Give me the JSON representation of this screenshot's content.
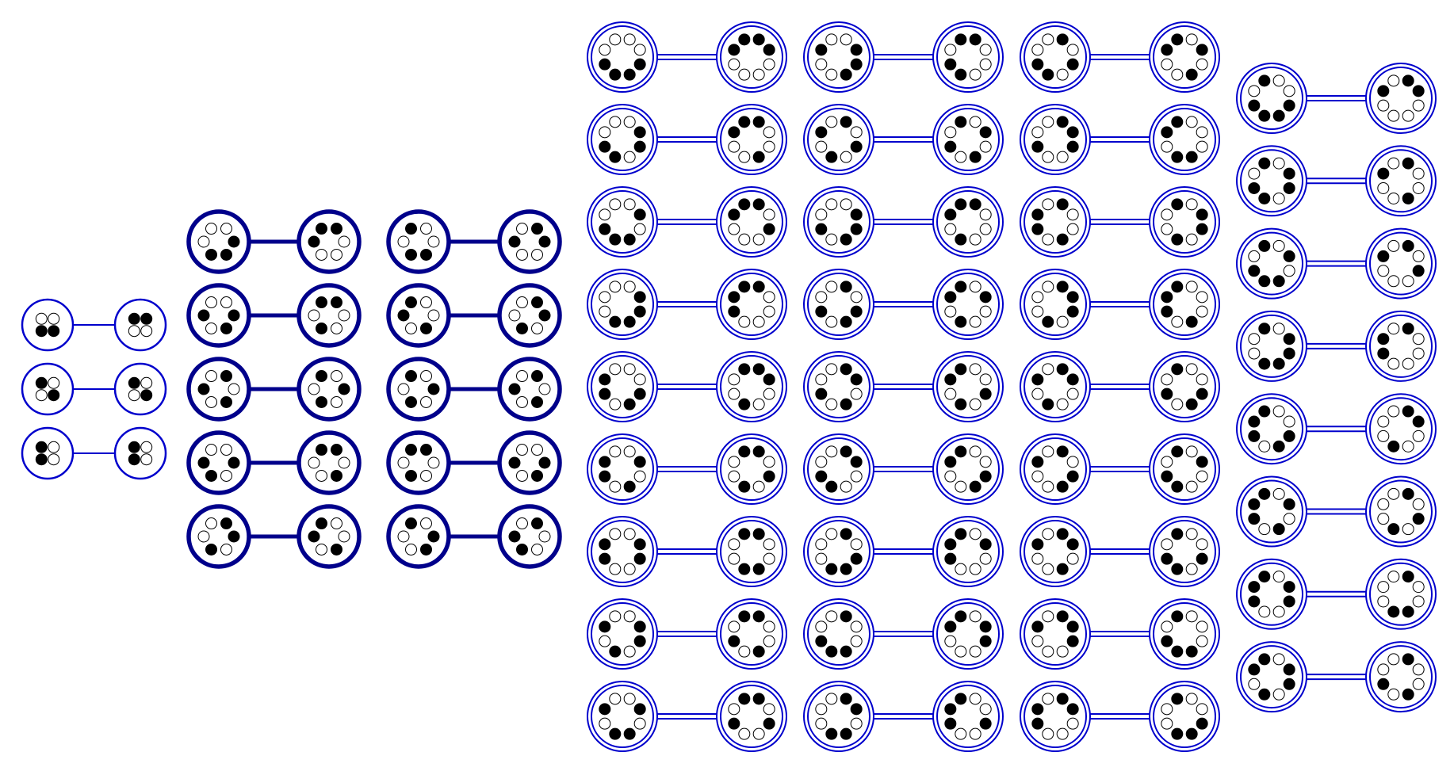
{
  "colors": {
    "stroke_blue": "#0000cc",
    "stroke_navy": "#00008b",
    "filled_dot": "#000000",
    "empty_dot": "#ffffff",
    "background": "#ffffff"
  },
  "groups": [
    {
      "id": "4-bead",
      "border_style": "single-thin",
      "pairs": [
        [
          "0011",
          "1100"
        ],
        [
          "1001",
          "1001"
        ],
        [
          "1010",
          "1010"
        ]
      ]
    },
    {
      "id": "6-bead",
      "border_style": "single-thick",
      "pairs": [
        [
          "001110",
          "110001"
        ],
        [
          "001101",
          "110010"
        ],
        [
          "010101",
          "101010"
        ],
        [
          "001011",
          "110100"
        ],
        [
          "011010",
          "100101"
        ],
        [
          "100110",
          "011001"
        ],
        [
          "100101",
          "011010"
        ],
        [
          "101010",
          "010101"
        ],
        [
          "110010",
          "001101"
        ],
        [
          "101100",
          "010011"
        ]
      ]
    },
    {
      "id": "8-bead-a",
      "border_style": "double",
      "pairs": [
        [
          "00011110",
          "11100001"
        ],
        [
          "00110110",
          "11001001"
        ],
        [
          "00101110",
          "11010001"
        ],
        [
          "00111100",
          "11000011"
        ],
        [
          "00011011",
          "11100100"
        ],
        [
          "00101011",
          "11010100"
        ],
        [
          "00110011",
          "11001100"
        ],
        [
          "00110101",
          "11001010"
        ],
        [
          "00101101",
          "11010010"
        ],
        [
          "00111001",
          "11000110"
        ],
        [
          "01010101",
          "10101010"
        ],
        [
          "00111010",
          "11000101"
        ],
        [
          "01011010",
          "10100101"
        ],
        [
          "01101010",
          "10010101"
        ],
        [
          "01100110",
          "10011001"
        ],
        [
          "01011100",
          "10100011"
        ],
        [
          "01001110",
          "10110001"
        ],
        [
          "01101100",
          "10010011"
        ],
        [
          "01010110",
          "10101001"
        ],
        [
          "01110010",
          "10001101"
        ],
        [
          "01001011",
          "10110100"
        ],
        [
          "01110100",
          "10001011"
        ],
        [
          "01100101",
          "10011010"
        ],
        [
          "01011001",
          "10100110"
        ],
        [
          "01101001",
          "10010110"
        ],
        [
          "01110001",
          "10001110"
        ],
        [
          "01100011",
          "10011100"
        ]
      ]
    },
    {
      "id": "8-bead-b",
      "border_style": "double",
      "pairs": [
        [
          "10011110",
          "01100001"
        ],
        [
          "10110110",
          "01001001"
        ],
        [
          "10101110",
          "01010001"
        ],
        [
          "10111100",
          "01000011"
        ],
        [
          "10011011",
          "01100100"
        ],
        [
          "10101011",
          "01010100"
        ],
        [
          "10110011",
          "01001100"
        ],
        [
          "10110101",
          "01001010"
        ]
      ]
    }
  ]
}
